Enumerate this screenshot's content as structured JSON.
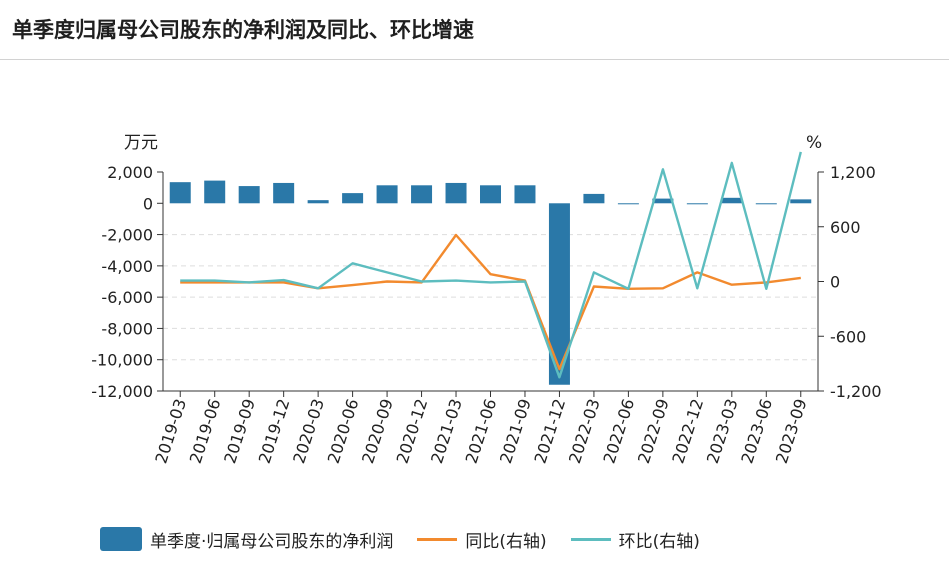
{
  "title": "单季度归属母公司股东的净利润及同比、环比增速",
  "colors": {
    "bar": "#2a78a8",
    "yoy": "#f28a2e",
    "qoq": "#5dbdbf"
  },
  "chart_data": {
    "type": "bar",
    "categories": [
      "2019-03",
      "2019-06",
      "2019-09",
      "2019-12",
      "2020-03",
      "2020-06",
      "2020-09",
      "2020-12",
      "2021-03",
      "2021-06",
      "2021-09",
      "2021-12",
      "2022-03",
      "2022-06",
      "2022-09",
      "2022-12",
      "2023-03",
      "2023-06",
      "2023-09"
    ],
    "left_unit": "万元",
    "right_unit": "%",
    "left_ticks": [
      "2,000",
      "0",
      "-2,000",
      "-4,000",
      "-6,000",
      "-8,000",
      "-10,000",
      "-12,000"
    ],
    "right_ticks": [
      "1,200",
      "600",
      "0",
      "-600",
      "-1,200"
    ],
    "ylim_left": [
      -12000,
      2000
    ],
    "ylim_right": [
      -1200,
      1200
    ],
    "series": [
      {
        "name": "单季度·归属母公司股东的净利润",
        "axis": "left",
        "kind": "bar",
        "values": [
          1350,
          1450,
          1100,
          1300,
          200,
          650,
          1150,
          1150,
          1300,
          1150,
          1150,
          -11600,
          600,
          -50,
          300,
          0,
          350,
          -50,
          250
        ]
      },
      {
        "name": "同比(右轴)",
        "axis": "right",
        "kind": "line",
        "values": [
          -10,
          -10,
          -10,
          -10,
          -75,
          -40,
          0,
          -10,
          510,
          80,
          10,
          -960,
          -55,
          -80,
          -75,
          100,
          -35,
          -10,
          40
        ]
      },
      {
        "name": "环比(右轴)",
        "axis": "right",
        "kind": "line",
        "values": [
          10,
          10,
          -10,
          15,
          -75,
          200,
          100,
          0,
          10,
          -10,
          0,
          -1050,
          100,
          -80,
          1230,
          -75,
          1300,
          -80,
          1420
        ]
      }
    ],
    "grid": true,
    "legend_position": "bottom"
  }
}
